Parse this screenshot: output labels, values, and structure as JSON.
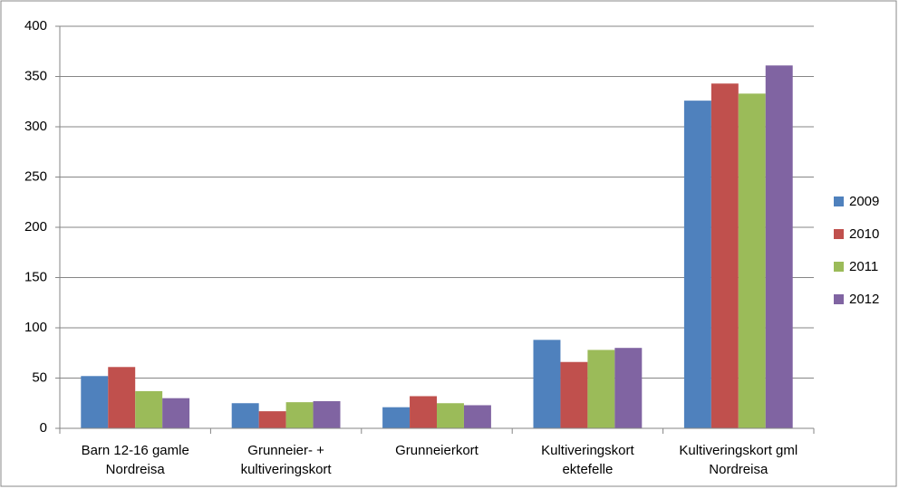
{
  "chart_data": {
    "type": "bar",
    "categories": [
      "Barn 12-16 gamle Nordreisa",
      "Grunneier- + kultiveringskort",
      "Grunneierkort",
      "Kultiveringskort ektefelle",
      "Kultiveringskort gml Nordreisa"
    ],
    "series": [
      {
        "name": "2009",
        "color": "#4f81bd",
        "values": [
          52,
          25,
          21,
          88,
          326
        ]
      },
      {
        "name": "2010",
        "color": "#c0504d",
        "values": [
          61,
          17,
          32,
          66,
          343
        ]
      },
      {
        "name": "2011",
        "color": "#9bbb59",
        "values": [
          37,
          26,
          25,
          78,
          333
        ]
      },
      {
        "name": "2012",
        "color": "#8064a2",
        "values": [
          30,
          27,
          23,
          80,
          361
        ]
      }
    ],
    "ylim": [
      0,
      400
    ],
    "yticks": [
      0,
      50,
      100,
      150,
      200,
      250,
      300,
      350,
      400
    ],
    "grid": true,
    "legend": "right"
  }
}
